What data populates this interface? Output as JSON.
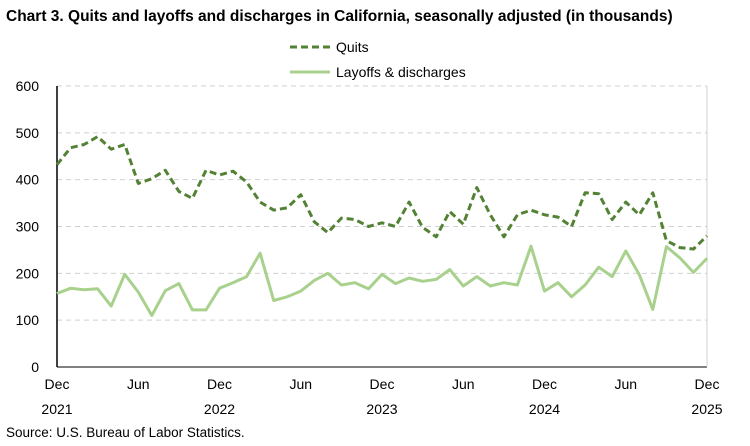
{
  "chart_data": {
    "type": "line",
    "title": "Chart 3. Quits and layoffs and discharges in California, seasonally adjusted (in thousands)",
    "source": "Source: U.S. Bureau of Labor Statistics.",
    "x_start": "2021-12",
    "x_end": "2025-12",
    "x_tick_labels": [
      {
        "month": "Dec",
        "year": "2021",
        "index": 0
      },
      {
        "month": "Jun",
        "year": "",
        "index": 6
      },
      {
        "month": "Dec",
        "year": "2022",
        "index": 12
      },
      {
        "month": "Jun",
        "year": "",
        "index": 18
      },
      {
        "month": "Dec",
        "year": "2023",
        "index": 24
      },
      {
        "month": "Jun",
        "year": "",
        "index": 30
      },
      {
        "month": "Dec",
        "year": "2024",
        "index": 36
      },
      {
        "month": "Jun",
        "year": "",
        "index": 42
      },
      {
        "month": "Dec",
        "year": "2025",
        "index": 48
      }
    ],
    "ylim": [
      0,
      600
    ],
    "y_ticks": [
      "0",
      "100",
      "200",
      "300",
      "400",
      "500",
      "600"
    ],
    "grid": "horizontal dashed",
    "legend": "top-center",
    "series": [
      {
        "name": "Quits",
        "color": "#548235",
        "style": "dashed",
        "values": [
          432,
          468,
          475,
          492,
          465,
          475,
          392,
          402,
          420,
          375,
          360,
          420,
          410,
          418,
          395,
          352,
          335,
          340,
          368,
          310,
          287,
          318,
          315,
          300,
          308,
          300,
          352,
          298,
          278,
          332,
          305,
          383,
          325,
          278,
          325,
          335,
          325,
          320,
          300,
          372,
          370,
          315,
          352,
          325,
          372,
          270,
          255,
          252,
          280
        ]
      },
      {
        "name": "Layoffs & discharges",
        "color": "#a9d18e",
        "style": "solid",
        "values": [
          157,
          168,
          165,
          167,
          130,
          198,
          160,
          110,
          163,
          178,
          122,
          122,
          168,
          180,
          193,
          243,
          142,
          150,
          162,
          185,
          200,
          175,
          180,
          167,
          198,
          178,
          190,
          183,
          187,
          208,
          173,
          193,
          173,
          180,
          175,
          258,
          162,
          180,
          150,
          175,
          213,
          193,
          248,
          197,
          123,
          257,
          233,
          202,
          232
        ]
      }
    ]
  }
}
